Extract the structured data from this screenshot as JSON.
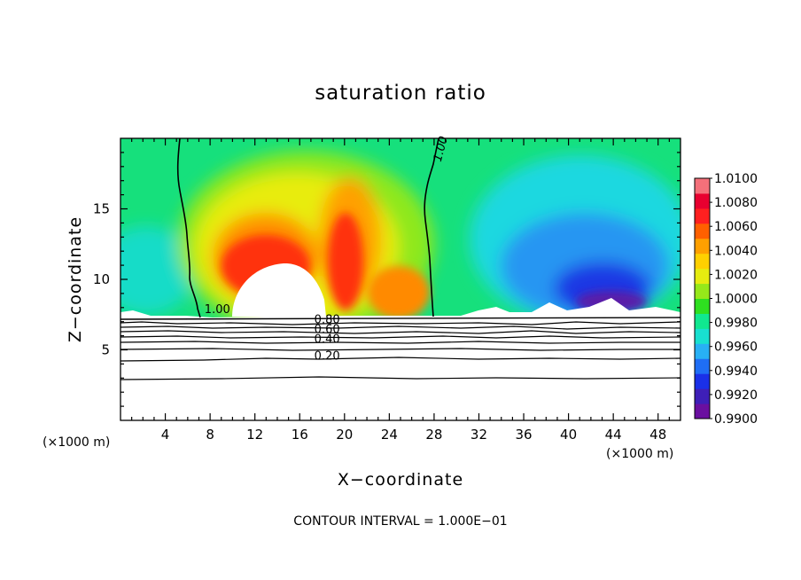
{
  "chart_data": {
    "type": "heatmap",
    "title": "saturation ratio",
    "xlabel": "X−coordinate",
    "ylabel": "Z−coordinate",
    "x_unit_left": "(×1000 m)",
    "x_unit_right": "(×1000 m)",
    "footer": "CONTOUR INTERVAL = 1.000E−01",
    "xlim": [
      0,
      50
    ],
    "ylim": [
      0,
      20
    ],
    "x_ticks": [
      4,
      8,
      12,
      16,
      20,
      24,
      28,
      32,
      36,
      40,
      44,
      48
    ],
    "x_tick_labels": [
      "4",
      "8",
      "12",
      "16",
      "20",
      "24",
      "28",
      "32",
      "36",
      "40",
      "44",
      "48"
    ],
    "y_ticks": [
      5,
      10,
      15
    ],
    "y_tick_labels": [
      "5",
      "10",
      "15"
    ],
    "colorbar": {
      "range": [
        0.99,
        1.01
      ],
      "labels": [
        "1.0100",
        "1.0080",
        "1.0060",
        "1.0040",
        "1.0020",
        "1.0000",
        "0.9980",
        "0.9960",
        "0.9940",
        "0.9920",
        "0.9900"
      ],
      "colors": [
        "#6a0fa0",
        "#3e1fb8",
        "#1a30e8",
        "#1f6ef5",
        "#28b0f5",
        "#18e0d0",
        "#10e890",
        "#2ee020",
        "#96e81a",
        "#e6ec10",
        "#ffd000",
        "#ffa000",
        "#ff6000",
        "#ff2020",
        "#e80030",
        "#f4707a"
      ]
    },
    "contour_labels": [
      {
        "text": "1.00",
        "x": 7.5,
        "z": 7.6
      },
      {
        "text": "1.00",
        "x": 28.6,
        "z": 18.3
      },
      {
        "text": "0.80",
        "x": 17.3,
        "z": 6.9
      },
      {
        "text": "0.60",
        "x": 17.3,
        "z": 6.2
      },
      {
        "text": "0.40",
        "x": 17.3,
        "z": 5.5
      },
      {
        "text": "0.20",
        "x": 17.3,
        "z": 4.3
      }
    ],
    "contour_levels": [
      0.2,
      0.4,
      0.6,
      0.8,
      1.0
    ],
    "contour_interval": 0.1
  }
}
